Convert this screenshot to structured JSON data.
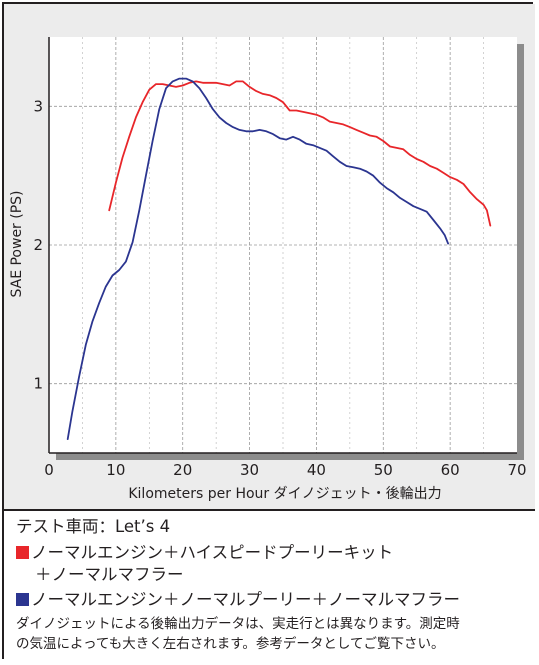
{
  "chart_data": {
    "type": "line",
    "xlabel": "Kilometers per Hour ダイノジェット・後輪出力",
    "ylabel": "SAE Power (PS)",
    "xlim": [
      0,
      70
    ],
    "ylim": [
      0.5,
      3.5
    ],
    "x_ticks": [
      0,
      10,
      20,
      30,
      40,
      50,
      60,
      70
    ],
    "y_ticks": [
      1,
      2,
      3
    ],
    "grid": true,
    "series": [
      {
        "color": "#e8262a",
        "points": [
          [
            9,
            2.25
          ],
          [
            10,
            2.45
          ],
          [
            11,
            2.63
          ],
          [
            12,
            2.78
          ],
          [
            13,
            2.92
          ],
          [
            14,
            3.03
          ],
          [
            15,
            3.12
          ],
          [
            16,
            3.16
          ],
          [
            17,
            3.16
          ],
          [
            18,
            3.15
          ],
          [
            19,
            3.14
          ],
          [
            20,
            3.15
          ],
          [
            21,
            3.17
          ],
          [
            22,
            3.18
          ],
          [
            23,
            3.17
          ],
          [
            24,
            3.17
          ],
          [
            25,
            3.17
          ],
          [
            26,
            3.16
          ],
          [
            27,
            3.15
          ],
          [
            28,
            3.18
          ],
          [
            29,
            3.18
          ],
          [
            30,
            3.14
          ],
          [
            31,
            3.11
          ],
          [
            32,
            3.09
          ],
          [
            33,
            3.08
          ],
          [
            34,
            3.06
          ],
          [
            35,
            3.03
          ],
          [
            36,
            2.97
          ],
          [
            37,
            2.97
          ],
          [
            38,
            2.96
          ],
          [
            39,
            2.95
          ],
          [
            40,
            2.94
          ],
          [
            41,
            2.92
          ],
          [
            42,
            2.89
          ],
          [
            43,
            2.88
          ],
          [
            44,
            2.87
          ],
          [
            45,
            2.85
          ],
          [
            46,
            2.83
          ],
          [
            47,
            2.81
          ],
          [
            48,
            2.79
          ],
          [
            49,
            2.78
          ],
          [
            50,
            2.75
          ],
          [
            51,
            2.71
          ],
          [
            52,
            2.7
          ],
          [
            53,
            2.69
          ],
          [
            54,
            2.65
          ],
          [
            55,
            2.62
          ],
          [
            56,
            2.6
          ],
          [
            57,
            2.57
          ],
          [
            58,
            2.55
          ],
          [
            59,
            2.52
          ],
          [
            60,
            2.49
          ],
          [
            61,
            2.47
          ],
          [
            62,
            2.44
          ],
          [
            63,
            2.38
          ],
          [
            64,
            2.33
          ],
          [
            65,
            2.29
          ],
          [
            65.5,
            2.25
          ],
          [
            66,
            2.14
          ]
        ]
      },
      {
        "color": "#2b3590",
        "points": [
          [
            2.8,
            0.6
          ],
          [
            3.5,
            0.8
          ],
          [
            4.5,
            1.05
          ],
          [
            5.5,
            1.28
          ],
          [
            6.5,
            1.45
          ],
          [
            7.5,
            1.58
          ],
          [
            8.5,
            1.7
          ],
          [
            9.5,
            1.78
          ],
          [
            10.5,
            1.82
          ],
          [
            11.5,
            1.88
          ],
          [
            12.5,
            2.02
          ],
          [
            13.5,
            2.25
          ],
          [
            14.5,
            2.5
          ],
          [
            15.5,
            2.75
          ],
          [
            16.5,
            2.98
          ],
          [
            17.5,
            3.13
          ],
          [
            18.5,
            3.18
          ],
          [
            19.5,
            3.2
          ],
          [
            20.5,
            3.2
          ],
          [
            21.5,
            3.18
          ],
          [
            22.5,
            3.13
          ],
          [
            23.5,
            3.06
          ],
          [
            24.5,
            2.98
          ],
          [
            25.5,
            2.92
          ],
          [
            26.5,
            2.88
          ],
          [
            27.5,
            2.85
          ],
          [
            28.5,
            2.83
          ],
          [
            29.5,
            2.82
          ],
          [
            30.5,
            2.82
          ],
          [
            31.5,
            2.83
          ],
          [
            32.5,
            2.82
          ],
          [
            33.5,
            2.8
          ],
          [
            34.5,
            2.77
          ],
          [
            35.5,
            2.76
          ],
          [
            36.5,
            2.78
          ],
          [
            37.5,
            2.76
          ],
          [
            38.5,
            2.73
          ],
          [
            39.5,
            2.72
          ],
          [
            40.5,
            2.7
          ],
          [
            41.5,
            2.68
          ],
          [
            42.5,
            2.64
          ],
          [
            43.5,
            2.6
          ],
          [
            44.5,
            2.57
          ],
          [
            45.5,
            2.56
          ],
          [
            46.5,
            2.55
          ],
          [
            47.5,
            2.53
          ],
          [
            48.5,
            2.5
          ],
          [
            49.5,
            2.45
          ],
          [
            50.5,
            2.41
          ],
          [
            51.5,
            2.38
          ],
          [
            52.5,
            2.34
          ],
          [
            53.5,
            2.31
          ],
          [
            54.5,
            2.28
          ],
          [
            55.5,
            2.26
          ],
          [
            56.5,
            2.24
          ],
          [
            57.5,
            2.18
          ],
          [
            58.5,
            2.12
          ],
          [
            59.2,
            2.07
          ],
          [
            59.7,
            2.01
          ]
        ]
      }
    ]
  },
  "info": {
    "test_vehicle": "テスト車両：Let’s 4",
    "legend_red_line1": "ノーマルエンジン＋ハイスピードプーリーキット",
    "legend_red_line2": "＋ノーマルマフラー",
    "legend_blue": "ノーマルエンジン＋ノーマルプーリー＋ノーマルマフラー",
    "note_line1": "ダイノジェットによる後輪出力データは、実走行とは異なります。測定時",
    "note_line2": "の気温によっても大きく左右されます。参考データとしてご覧下さい。",
    "red_color": "#e8262a",
    "blue_color": "#2b3590"
  }
}
